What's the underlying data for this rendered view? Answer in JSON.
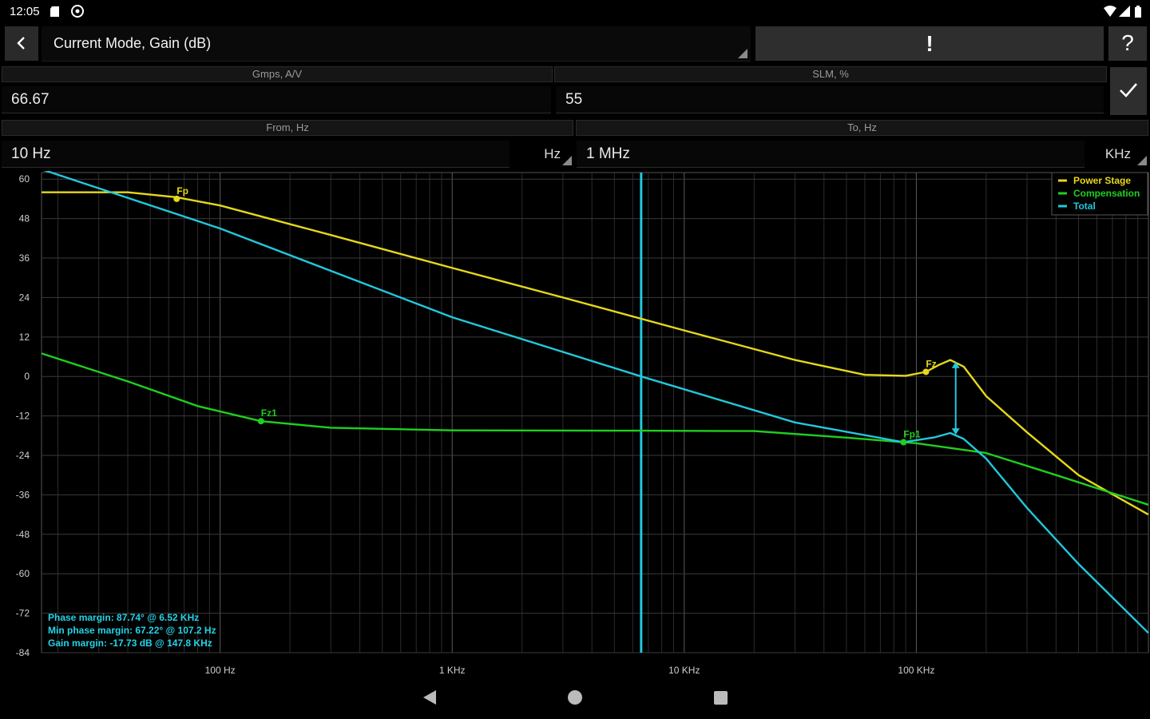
{
  "status_bar": {
    "time": "12:05"
  },
  "toolbar": {
    "mode": "Current Mode, Gain (dB)",
    "warning_label": "!",
    "help_label": "?"
  },
  "params": {
    "gmps_header": "Gmps, A/V",
    "gmps_value": "66.67",
    "slm_header": "SLM, %",
    "slm_value": "55",
    "from_header": "From, Hz",
    "from_value": "10 Hz",
    "from_unit": "Hz",
    "to_header": "To, Hz",
    "to_value": "1 MHz",
    "to_unit": "KHz"
  },
  "chart_data": {
    "type": "line",
    "x_scale": "log",
    "xlim": [
      17,
      1000000
    ],
    "ylim": [
      -84,
      62
    ],
    "y_ticks": [
      60,
      48,
      36,
      24,
      12,
      0,
      -12,
      -24,
      -36,
      -48,
      -60,
      -72,
      -84
    ],
    "x_tick_labels": [
      {
        "x": 100,
        "label": "100 Hz"
      },
      {
        "x": 1000,
        "label": "1 KHz"
      },
      {
        "x": 10000,
        "label": "10 KHz"
      },
      {
        "x": 100000,
        "label": "100 KHz"
      }
    ],
    "grid": true,
    "legend_position": "top-right",
    "crossover_x": 6520,
    "series": [
      {
        "name": "Power Stage",
        "color": "#e6d81a",
        "points": [
          [
            17,
            56
          ],
          [
            40,
            56
          ],
          [
            65,
            54.5
          ],
          [
            100,
            52
          ],
          [
            300,
            43
          ],
          [
            1000,
            33
          ],
          [
            3000,
            24
          ],
          [
            10000,
            14
          ],
          [
            30000,
            5
          ],
          [
            60000,
            0.5
          ],
          [
            90000,
            0.2
          ],
          [
            110000,
            1.4
          ],
          [
            125000,
            3.5
          ],
          [
            140000,
            5
          ],
          [
            160000,
            3
          ],
          [
            200000,
            -6
          ],
          [
            300000,
            -17
          ],
          [
            500000,
            -30
          ],
          [
            1000000,
            -42
          ]
        ]
      },
      {
        "name": "Compensation",
        "color": "#1fcf1f",
        "points": [
          [
            17,
            7
          ],
          [
            40,
            -1.5
          ],
          [
            80,
            -9
          ],
          [
            150,
            -13.6
          ],
          [
            300,
            -15.6
          ],
          [
            1000,
            -16.4
          ],
          [
            6520,
            -16.5
          ],
          [
            20000,
            -16.6
          ],
          [
            50000,
            -18.6
          ],
          [
            100000,
            -20.3
          ],
          [
            200000,
            -23.3
          ],
          [
            400000,
            -30
          ],
          [
            1000000,
            -39
          ]
        ]
      },
      {
        "name": "Total",
        "color": "#22c8dc",
        "points": [
          [
            17,
            63
          ],
          [
            100,
            45
          ],
          [
            1000,
            18
          ],
          [
            6520,
            0
          ],
          [
            30000,
            -14
          ],
          [
            88000,
            -20
          ],
          [
            120000,
            -18.5
          ],
          [
            140000,
            -17.2
          ],
          [
            160000,
            -19
          ],
          [
            200000,
            -25
          ],
          [
            300000,
            -40
          ],
          [
            500000,
            -57
          ],
          [
            1000000,
            -78
          ]
        ]
      }
    ],
    "markers": [
      {
        "label": "Fp",
        "x": 65,
        "y": 54,
        "color": "#e6d81a"
      },
      {
        "label": "Fz1",
        "x": 150,
        "y": -13.6,
        "color": "#1fcf1f"
      },
      {
        "label": "Fp1",
        "x": 88000,
        "y": -20,
        "color": "#1fcf1f"
      },
      {
        "label": "Fz",
        "x": 110000,
        "y": 1.4,
        "color": "#e6d81a"
      }
    ],
    "gain_margin_arrow": {
      "x": 147800,
      "y_from": -17.7,
      "y_to": 4.5
    },
    "info_lines": [
      "Phase margin: 87.74° @ 6.52 KHz",
      "Min phase margin: 67.22° @ 107.2 Hz",
      "Gain margin: -17.73 dB @ 147.8 KHz"
    ]
  },
  "icons": {
    "back": "chevron-left-icon",
    "apply": "check-icon",
    "nav_back": "triangle-back-icon",
    "nav_home": "circle-home-icon",
    "nav_recents": "square-recents-icon"
  }
}
